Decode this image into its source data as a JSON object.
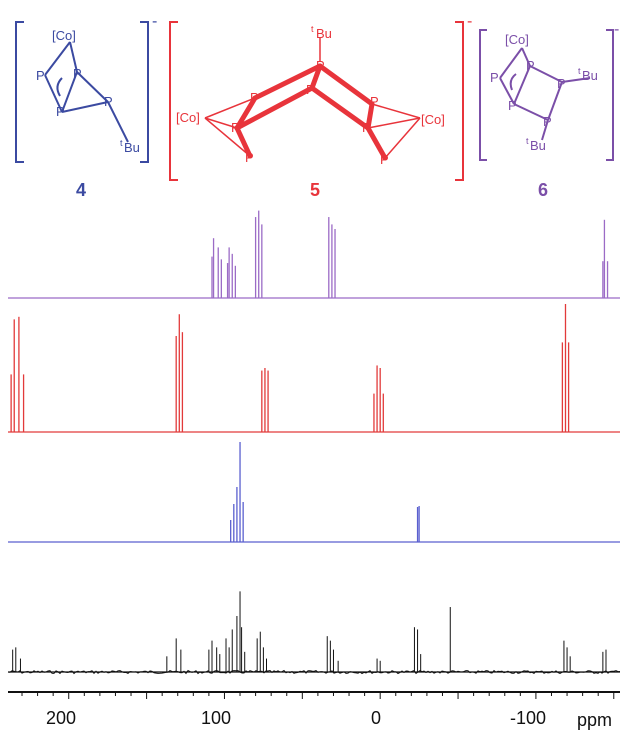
{
  "structures": {
    "c4": {
      "label": "4",
      "color": "#3b4aa1",
      "charge": "-",
      "atoms": {
        "co": "[Co]",
        "tbu_t": "t",
        "tbu": "Bu",
        "p": "P"
      }
    },
    "c5": {
      "label": "5",
      "color": "#e8343b",
      "charge": "-",
      "atoms": {
        "co": "[Co]",
        "tbu_t": "t",
        "tbu": "Bu",
        "p": "P"
      }
    },
    "c6": {
      "label": "6",
      "color": "#7b4fa8",
      "charge": "-",
      "atoms": {
        "co": "[Co]",
        "tbu_t": "t",
        "tbu": "Bu",
        "p": "P"
      }
    }
  },
  "axis": {
    "unit": "ppm",
    "ticks": [
      "200",
      "100",
      "0",
      "-100"
    ]
  },
  "colors": {
    "spectrum6": "#9b6bc6",
    "spectrum5": "#e23a3a",
    "spectrum4": "#5a5fcf",
    "experimental": "#111111"
  },
  "chart_data": {
    "type": "line",
    "x_axis": {
      "label": "ppm",
      "range": [
        239,
        -154
      ],
      "ticks": [
        200,
        100,
        0,
        -100
      ],
      "reversed": true
    },
    "series": [
      {
        "name": "6",
        "peaks": [
          {
            "ppm": 108,
            "h": 0.45
          },
          {
            "ppm": 107,
            "h": 0.65
          },
          {
            "ppm": 104,
            "h": 0.55
          },
          {
            "ppm": 102,
            "h": 0.42
          },
          {
            "ppm": 98,
            "h": 0.38
          },
          {
            "ppm": 97,
            "h": 0.55
          },
          {
            "ppm": 95,
            "h": 0.48
          },
          {
            "ppm": 93,
            "h": 0.35
          },
          {
            "ppm": 80,
            "h": 0.88
          },
          {
            "ppm": 78,
            "h": 0.95
          },
          {
            "ppm": 76,
            "h": 0.8
          },
          {
            "ppm": 33,
            "h": 0.88
          },
          {
            "ppm": 31,
            "h": 0.8
          },
          {
            "ppm": 29,
            "h": 0.75
          },
          {
            "ppm": -143,
            "h": 0.4
          },
          {
            "ppm": -144,
            "h": 0.85
          },
          {
            "ppm": -146,
            "h": 0.4
          }
        ]
      },
      {
        "name": "5",
        "peaks": [
          {
            "ppm": 237,
            "h": 0.45
          },
          {
            "ppm": 235,
            "h": 0.88
          },
          {
            "ppm": 232,
            "h": 0.9
          },
          {
            "ppm": 229,
            "h": 0.45
          },
          {
            "ppm": 131,
            "h": 0.75
          },
          {
            "ppm": 129,
            "h": 0.92
          },
          {
            "ppm": 127,
            "h": 0.78
          },
          {
            "ppm": 76,
            "h": 0.48
          },
          {
            "ppm": 74,
            "h": 0.5
          },
          {
            "ppm": 72,
            "h": 0.48
          },
          {
            "ppm": 4,
            "h": 0.3
          },
          {
            "ppm": 2,
            "h": 0.52
          },
          {
            "ppm": 0,
            "h": 0.5
          },
          {
            "ppm": -2,
            "h": 0.3
          },
          {
            "ppm": -117,
            "h": 0.7
          },
          {
            "ppm": -119,
            "h": 1.0
          },
          {
            "ppm": -121,
            "h": 0.7
          }
        ]
      },
      {
        "name": "4",
        "peaks": [
          {
            "ppm": 96,
            "h": 0.22
          },
          {
            "ppm": 94,
            "h": 0.38
          },
          {
            "ppm": 92,
            "h": 0.55
          },
          {
            "ppm": 90,
            "h": 1.0
          },
          {
            "ppm": 88,
            "h": 0.4
          },
          {
            "ppm": -24,
            "h": 0.35
          },
          {
            "ppm": -25,
            "h": 0.36
          }
        ]
      },
      {
        "name": "",
        "peaks": [
          {
            "ppm": 236,
            "h": 0.2
          },
          {
            "ppm": 234,
            "h": 0.22
          },
          {
            "ppm": 231,
            "h": 0.12
          },
          {
            "ppm": 137,
            "h": 0.14
          },
          {
            "ppm": 131,
            "h": 0.3
          },
          {
            "ppm": 128,
            "h": 0.2
          },
          {
            "ppm": 110,
            "h": 0.2
          },
          {
            "ppm": 108,
            "h": 0.28
          },
          {
            "ppm": 105,
            "h": 0.22
          },
          {
            "ppm": 103,
            "h": 0.16
          },
          {
            "ppm": 99,
            "h": 0.3
          },
          {
            "ppm": 97,
            "h": 0.22
          },
          {
            "ppm": 95,
            "h": 0.38
          },
          {
            "ppm": 92,
            "h": 0.5
          },
          {
            "ppm": 90,
            "h": 0.72
          },
          {
            "ppm": 89,
            "h": 0.4
          },
          {
            "ppm": 87,
            "h": 0.18
          },
          {
            "ppm": 79,
            "h": 0.3
          },
          {
            "ppm": 77,
            "h": 0.36
          },
          {
            "ppm": 75,
            "h": 0.22
          },
          {
            "ppm": 73,
            "h": 0.12
          },
          {
            "ppm": 34,
            "h": 0.32
          },
          {
            "ppm": 32,
            "h": 0.28
          },
          {
            "ppm": 30,
            "h": 0.2
          },
          {
            "ppm": 27,
            "h": 0.1
          },
          {
            "ppm": 2,
            "h": 0.12
          },
          {
            "ppm": 0,
            "h": 0.1
          },
          {
            "ppm": -22,
            "h": 0.4
          },
          {
            "ppm": -24,
            "h": 0.38
          },
          {
            "ppm": -26,
            "h": 0.16
          },
          {
            "ppm": -45,
            "h": 0.58
          },
          {
            "ppm": -118,
            "h": 0.28
          },
          {
            "ppm": -120,
            "h": 0.22
          },
          {
            "ppm": -122,
            "h": 0.14
          },
          {
            "ppm": -143,
            "h": 0.18
          },
          {
            "ppm": -145,
            "h": 0.2
          }
        ]
      }
    ]
  }
}
